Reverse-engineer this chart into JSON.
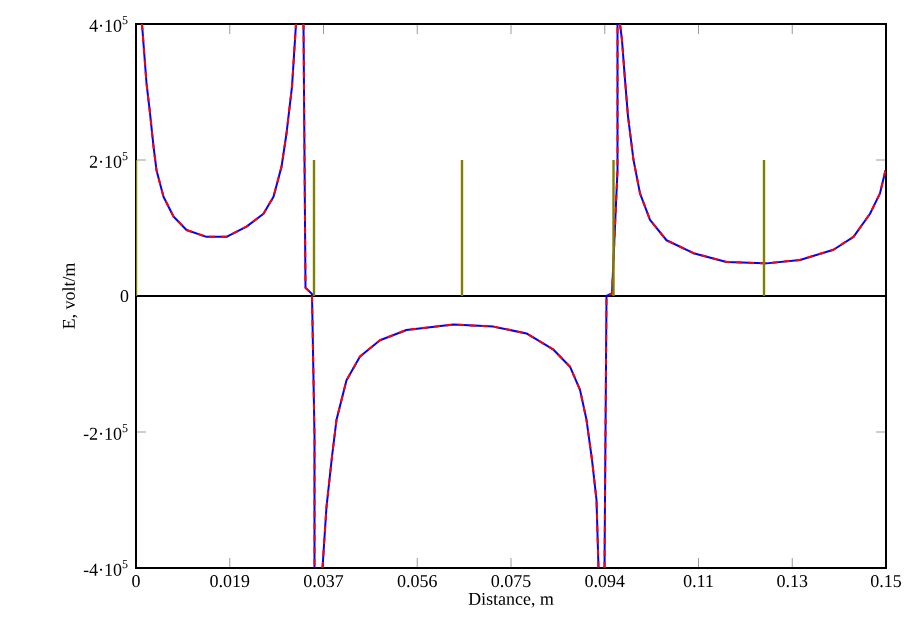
{
  "chart_data": {
    "type": "line",
    "xlabel": "Distance, m",
    "ylabel": "E, volt/m",
    "xlim": [
      0,
      0.15
    ],
    "ylim": [
      -400000,
      400000
    ],
    "xticks": [
      0,
      {
        "value": 0.01875,
        "label": "0.019"
      },
      {
        "value": 0.0375,
        "label": "0.037"
      },
      {
        "value": 0.05625,
        "label": "0.056"
      },
      0.075,
      {
        "value": 0.09375,
        "label": "0.094"
      },
      {
        "value": 0.1125,
        "label": "0.11"
      },
      {
        "value": 0.13125,
        "label": "0.13"
      },
      0.15
    ],
    "yticks": [
      {
        "value": -400000,
        "label": "-4·10$^{5}$"
      },
      {
        "value": -200000,
        "label": "-2·10$^{5}$"
      },
      0,
      {
        "value": 200000,
        "label": "2·10$^{5}$"
      },
      {
        "value": 400000,
        "label": "4·10$^{5}$"
      }
    ],
    "grid": false,
    "ref_lines": [
      {
        "axis": "y",
        "value": 0,
        "color": "#000000"
      }
    ],
    "series": [
      {
        "color": "#0000ff",
        "line_style": "solid",
        "x": [
          0.0012,
          0.0021,
          0.0028,
          0.0035,
          0.0041,
          0.0055,
          0.0075,
          0.0101,
          0.0141,
          0.0181,
          0.0221,
          0.0255,
          0.0275,
          0.0291,
          0.0301,
          0.0312,
          0.032,
          null,
          0.0335,
          0.0339,
          0.0352,
          0.0357,
          0.0357,
          null,
          0.0373,
          0.0381,
          0.0392,
          0.0401,
          0.0421,
          0.0448,
          0.0488,
          0.0541,
          0.0635,
          0.0715,
          0.0728,
          0.0781,
          0.0835,
          0.0868,
          0.0888,
          0.0901,
          0.0912,
          0.0921,
          0.0925,
          null,
          0.0937,
          0.0941,
          0.0952,
          0.0963,
          0.0963,
          null,
          0.0968,
          0.0972,
          0.0977,
          0.0984,
          0.0995,
          0.1008,
          0.1028,
          0.1061,
          0.1115,
          0.1181,
          0.1261,
          0.1328,
          0.1395,
          0.1435,
          0.1468,
          0.1488,
          0.1499
        ],
        "values": [
          400000,
          313000,
          269000,
          220000,
          185000,
          146000,
          117000,
          97000,
          87000,
          87000,
          102000,
          121000,
          146000,
          190000,
          239000,
          308000,
          400000,
          null,
          400000,
          12000,
          3000,
          -206000,
          -400000,
          null,
          -400000,
          -310000,
          -236000,
          -182000,
          -124000,
          -89000,
          -65000,
          -50000,
          -42000,
          -45000,
          -47000,
          -55000,
          -79000,
          -104000,
          -138000,
          -182000,
          -241000,
          -300000,
          -400000,
          null,
          -400000,
          0,
          4000,
          185000,
          400000,
          null,
          400000,
          376000,
          327000,
          264000,
          200000,
          151000,
          112000,
          82000,
          63000,
          50000,
          48000,
          53000,
          68000,
          87000,
          121000,
          151000,
          185000
        ]
      },
      {
        "color": "#ff0000",
        "line_style": "dashed",
        "x": [
          0.0012,
          0.0021,
          0.0028,
          0.0035,
          0.0041,
          0.0055,
          0.0075,
          0.0101,
          0.0141,
          0.0181,
          0.0221,
          0.0255,
          0.0275,
          0.0291,
          0.0301,
          0.0312,
          0.032,
          null,
          0.0335,
          0.0339,
          0.0352,
          0.0357,
          0.0357,
          null,
          0.0373,
          0.0381,
          0.0392,
          0.0401,
          0.0421,
          0.0448,
          0.0488,
          0.0541,
          0.0635,
          0.0715,
          0.0728,
          0.0781,
          0.0835,
          0.0868,
          0.0888,
          0.0901,
          0.0912,
          0.0921,
          0.0925,
          null,
          0.0937,
          0.0941,
          0.0952,
          0.0963,
          0.0963,
          null,
          0.0968,
          0.0972,
          0.0977,
          0.0984,
          0.0995,
          0.1008,
          0.1028,
          0.1061,
          0.1115,
          0.1181,
          0.1261,
          0.1328,
          0.1395,
          0.1435,
          0.1468,
          0.1488,
          0.1499
        ],
        "values": [
          400000,
          313000,
          269000,
          220000,
          185000,
          146000,
          117000,
          97000,
          87000,
          87000,
          102000,
          121000,
          146000,
          190000,
          239000,
          308000,
          400000,
          null,
          400000,
          12000,
          3000,
          -206000,
          -400000,
          null,
          -400000,
          -310000,
          -236000,
          -182000,
          -124000,
          -89000,
          -65000,
          -50000,
          -42000,
          -45000,
          -47000,
          -55000,
          -79000,
          -104000,
          -138000,
          -182000,
          -241000,
          -300000,
          -400000,
          null,
          -400000,
          0,
          4000,
          185000,
          400000,
          null,
          400000,
          376000,
          327000,
          264000,
          200000,
          151000,
          112000,
          82000,
          63000,
          50000,
          48000,
          53000,
          68000,
          87000,
          121000,
          151000,
          185000
        ]
      },
      {
        "type": "bar",
        "color": "#808000",
        "x": [
          0,
          0.0356,
          0.0652,
          0.0955,
          0.1256
        ],
        "values": [
          200000,
          200000,
          200000,
          200000,
          200000
        ]
      }
    ]
  }
}
